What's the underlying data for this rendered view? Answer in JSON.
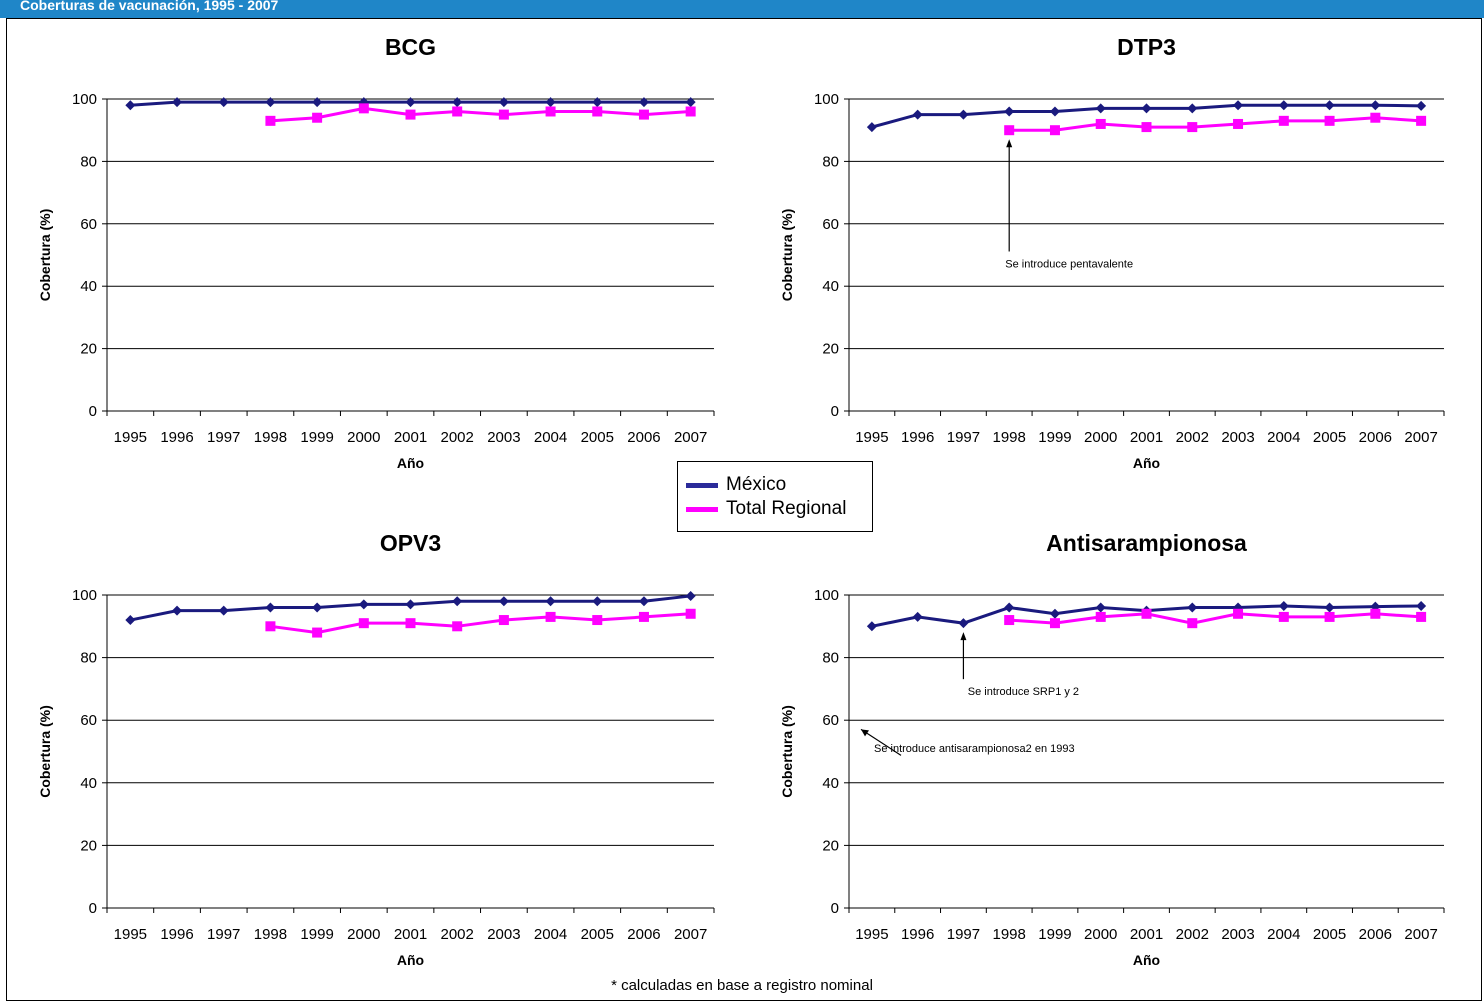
{
  "header": {
    "title": "Coberturas de vacunación, 1995 - 2007"
  },
  "colors": {
    "mexico": "#1a1a7e",
    "regional": "#ff00ff",
    "header_bg": "#1f86c8"
  },
  "legend": {
    "items": [
      {
        "label": "México",
        "color": "#2b2b9a"
      },
      {
        "label": "Total Regional",
        "color": "#ff00ff"
      }
    ]
  },
  "footnote": "* calculadas en base a registro nominal",
  "chart_data": [
    {
      "type": "line",
      "title": "BCG",
      "xlabel": "Año",
      "ylabel": "Cobertura (%)",
      "ylim": [
        0,
        100
      ],
      "yticks": [
        0,
        20,
        40,
        60,
        80,
        100
      ],
      "grid": true,
      "categories": [
        "1995",
        "1996",
        "1997",
        "1998",
        "1999",
        "2000",
        "2001",
        "2002",
        "2003",
        "2004",
        "2005",
        "2006",
        "2007"
      ],
      "series": [
        {
          "name": "México",
          "values": [
            98,
            99,
            99,
            99,
            99,
            99,
            99,
            99,
            99,
            99,
            99,
            99,
            99
          ]
        },
        {
          "name": "Total Regional",
          "values": [
            null,
            null,
            null,
            93,
            94,
            97,
            95,
            96,
            95,
            96,
            96,
            95,
            96
          ]
        }
      ],
      "annotations": []
    },
    {
      "type": "line",
      "title": "DTP3",
      "xlabel": "Año",
      "ylabel": "Cobertura (%)",
      "ylim": [
        0,
        100
      ],
      "yticks": [
        0,
        20,
        40,
        60,
        80,
        100
      ],
      "grid": true,
      "categories": [
        "1995",
        "1996",
        "1997",
        "1998",
        "1999",
        "2000",
        "2001",
        "2002",
        "2003",
        "2004",
        "2005",
        "2006",
        "2007"
      ],
      "series": [
        {
          "name": "México",
          "values": [
            91,
            95,
            95,
            96,
            96,
            97,
            97,
            97,
            98,
            98,
            98,
            98,
            97.8
          ]
        },
        {
          "name": "Total Regional",
          "values": [
            null,
            null,
            null,
            90,
            90,
            92,
            91,
            91,
            92,
            93,
            93,
            94,
            93
          ]
        }
      ],
      "annotations": [
        {
          "text": "Se introduce pentavalente",
          "x": "1998",
          "y": 90,
          "text_y": 46
        }
      ]
    },
    {
      "type": "line",
      "title": "OPV3",
      "xlabel": "Año",
      "ylabel": "Cobertura (%)",
      "ylim": [
        0,
        100
      ],
      "yticks": [
        0,
        20,
        40,
        60,
        80,
        100
      ],
      "grid": true,
      "categories": [
        "1995",
        "1996",
        "1997",
        "1998",
        "1999",
        "2000",
        "2001",
        "2002",
        "2003",
        "2004",
        "2005",
        "2006",
        "2007"
      ],
      "series": [
        {
          "name": "México",
          "values": [
            92,
            95,
            95,
            96,
            96,
            97,
            97,
            98,
            98,
            98,
            98,
            98,
            99.7
          ]
        },
        {
          "name": "Total Regional",
          "values": [
            null,
            null,
            null,
            90,
            88,
            91,
            91,
            90,
            92,
            93,
            92,
            93,
            94
          ]
        }
      ],
      "annotations": []
    },
    {
      "type": "line",
      "title": "Antisarampionosa",
      "xlabel": "Año",
      "ylabel": "Cobertura (%)",
      "ylim": [
        0,
        100
      ],
      "yticks": [
        0,
        20,
        40,
        60,
        80,
        100
      ],
      "grid": true,
      "categories": [
        "1995",
        "1996",
        "1997",
        "1998",
        "1999",
        "2000",
        "2001",
        "2002",
        "2003",
        "2004",
        "2005",
        "2006",
        "2007"
      ],
      "series": [
        {
          "name": "México",
          "values": [
            90,
            93,
            91,
            96,
            94,
            96,
            95,
            96,
            96,
            96.5,
            96,
            96.3,
            96.5
          ]
        },
        {
          "name": "Total Regional",
          "values": [
            null,
            null,
            null,
            92,
            91,
            93,
            94,
            91,
            94,
            93,
            93,
            94,
            93
          ]
        }
      ],
      "annotations": [
        {
          "text": "Se introduce SRP1 y 2",
          "x": "1997",
          "y": 91,
          "text_y": 68
        },
        {
          "text": "Se introduce antisarampionosa2 en 1993",
          "x": "edge",
          "y": 59,
          "text_y": 46
        }
      ]
    }
  ]
}
